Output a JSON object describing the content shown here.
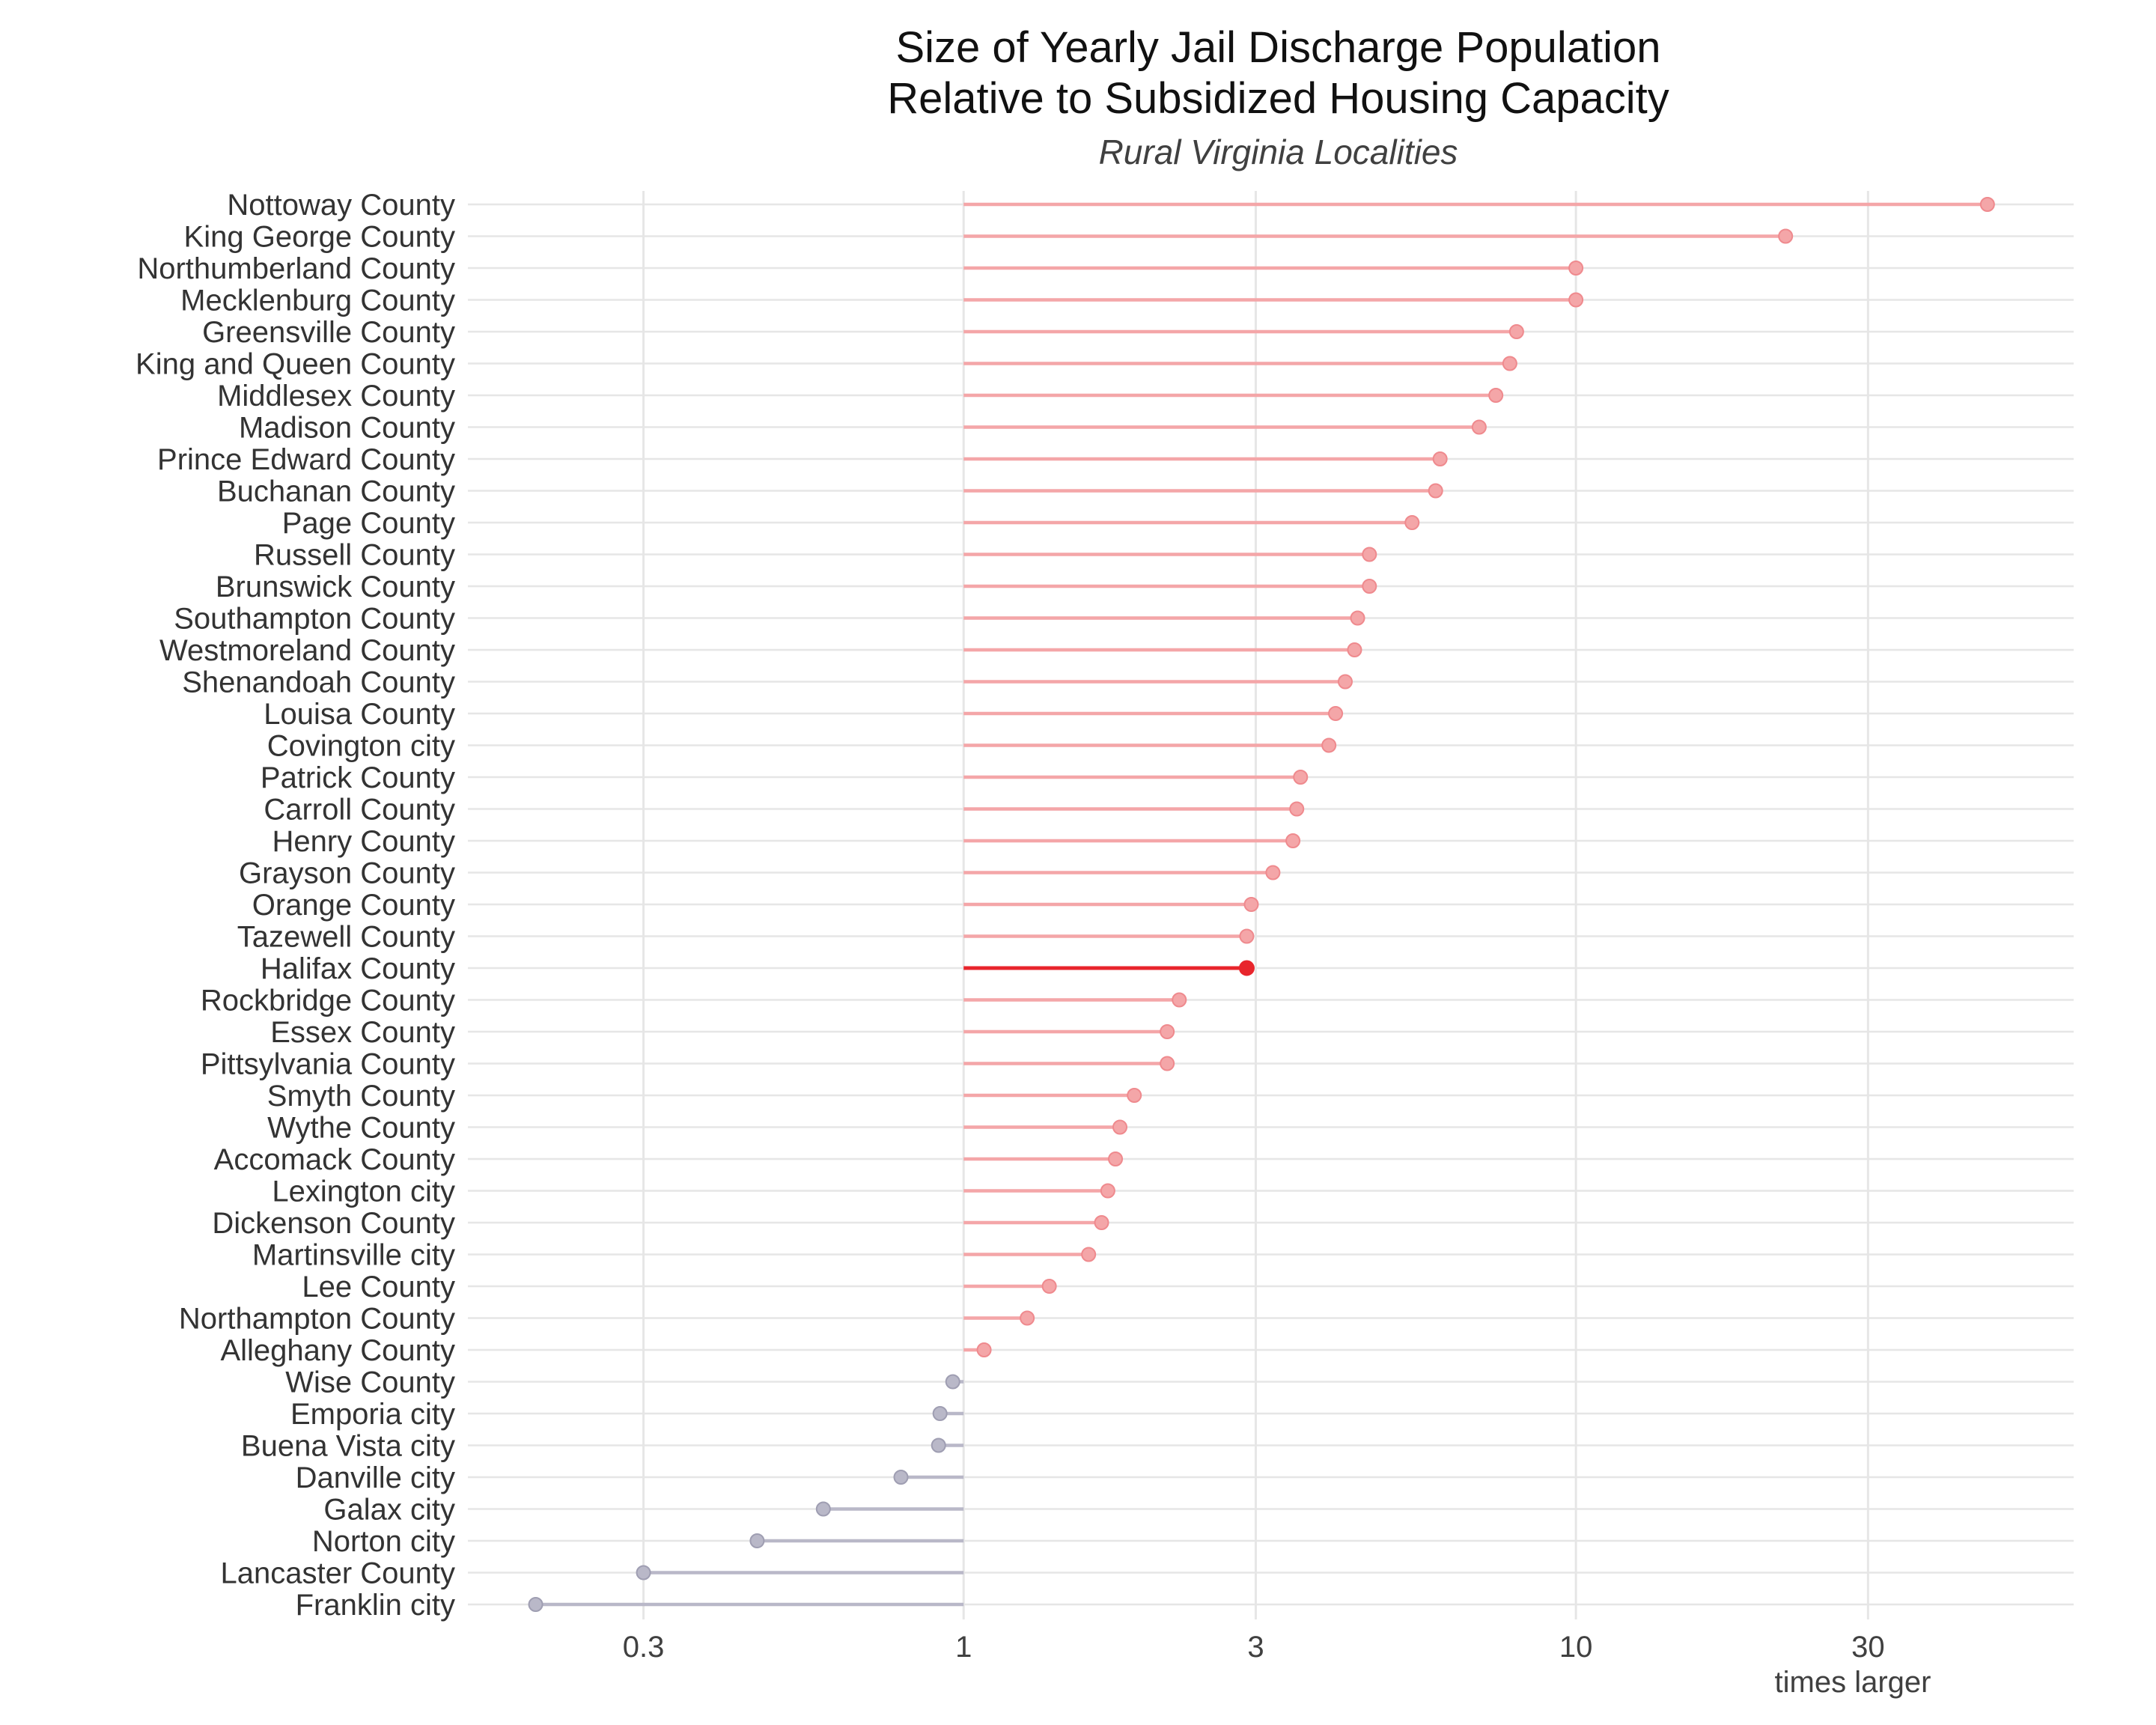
{
  "chart_data": {
    "type": "lollipop",
    "title_lines": [
      "Size of Yearly Jail Discharge Population",
      "Relative to Subsidized Housing Capacity"
    ],
    "subtitle": "Rural Virginia Localities",
    "xlabel": "times larger",
    "ylabel": "",
    "x_scale": "log10",
    "baseline": 1,
    "xlim": [
      0.155,
      65
    ],
    "x_ticks": [
      0.3,
      1,
      3,
      10,
      30
    ],
    "x_tick_labels": [
      "0.3",
      "1",
      "3",
      "10",
      "30"
    ],
    "grid": true,
    "legend": "none",
    "colors": {
      "above": "#f4a6a8",
      "below": "#b9b8c8",
      "highlight": "#e8252c",
      "grid": "#e6e6e6"
    },
    "highlight": "Halifax County",
    "points": [
      {
        "label": "Nottoway County",
        "value": 47.0
      },
      {
        "label": "King George County",
        "value": 22.0
      },
      {
        "label": "Northumberland County",
        "value": 10.0
      },
      {
        "label": "Mecklenburg County",
        "value": 10.0
      },
      {
        "label": "Greensville County",
        "value": 8.0
      },
      {
        "label": "King and Queen County",
        "value": 7.8
      },
      {
        "label": "Middlesex County",
        "value": 7.4
      },
      {
        "label": "Madison County",
        "value": 6.95
      },
      {
        "label": "Prince Edward County",
        "value": 6.0
      },
      {
        "label": "Buchanan County",
        "value": 5.9
      },
      {
        "label": "Page County",
        "value": 5.4
      },
      {
        "label": "Russell County",
        "value": 4.6
      },
      {
        "label": "Brunswick County",
        "value": 4.6
      },
      {
        "label": "Southampton County",
        "value": 4.4
      },
      {
        "label": "Westmoreland County",
        "value": 4.35
      },
      {
        "label": "Shenandoah County",
        "value": 4.2
      },
      {
        "label": "Louisa County",
        "value": 4.05
      },
      {
        "label": "Covington city",
        "value": 3.95
      },
      {
        "label": "Patrick County",
        "value": 3.55
      },
      {
        "label": "Carroll County",
        "value": 3.5
      },
      {
        "label": "Henry County",
        "value": 3.45
      },
      {
        "label": "Grayson County",
        "value": 3.2
      },
      {
        "label": "Orange County",
        "value": 2.95
      },
      {
        "label": "Tazewell County",
        "value": 2.9
      },
      {
        "label": "Halifax County",
        "value": 2.9
      },
      {
        "label": "Rockbridge County",
        "value": 2.25
      },
      {
        "label": "Essex County",
        "value": 2.15
      },
      {
        "label": "Pittsylvania County",
        "value": 2.15
      },
      {
        "label": "Smyth County",
        "value": 1.9
      },
      {
        "label": "Wythe County",
        "value": 1.8
      },
      {
        "label": "Accomack County",
        "value": 1.77
      },
      {
        "label": "Lexington city",
        "value": 1.72
      },
      {
        "label": "Dickenson County",
        "value": 1.68
      },
      {
        "label": "Martinsville city",
        "value": 1.6
      },
      {
        "label": "Lee County",
        "value": 1.38
      },
      {
        "label": "Northampton County",
        "value": 1.27
      },
      {
        "label": "Alleghany County",
        "value": 1.08
      },
      {
        "label": "Wise County",
        "value": 0.96
      },
      {
        "label": "Emporia city",
        "value": 0.915
      },
      {
        "label": "Buena Vista city",
        "value": 0.91
      },
      {
        "label": "Danville city",
        "value": 0.79
      },
      {
        "label": "Galax city",
        "value": 0.59
      },
      {
        "label": "Norton city",
        "value": 0.46
      },
      {
        "label": "Lancaster County",
        "value": 0.3
      },
      {
        "label": "Franklin city",
        "value": 0.2
      }
    ]
  }
}
